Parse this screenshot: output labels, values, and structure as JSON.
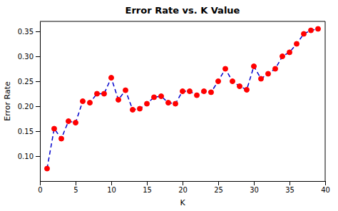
{
  "chart_data": {
    "type": "line",
    "title": "Error Rate vs. K Value",
    "xlabel": "K",
    "ylabel": "Error Rate",
    "x": [
      1,
      2,
      3,
      4,
      5,
      6,
      7,
      8,
      9,
      10,
      11,
      12,
      13,
      14,
      15,
      16,
      17,
      18,
      19,
      20,
      21,
      22,
      23,
      24,
      25,
      26,
      27,
      28,
      29,
      30,
      31,
      32,
      33,
      34,
      35,
      36,
      37,
      38,
      39
    ],
    "values": [
      0.075,
      0.155,
      0.135,
      0.17,
      0.167,
      0.21,
      0.207,
      0.225,
      0.225,
      0.257,
      0.213,
      0.232,
      0.193,
      0.195,
      0.205,
      0.218,
      0.22,
      0.207,
      0.205,
      0.23,
      0.23,
      0.222,
      0.23,
      0.228,
      0.25,
      0.275,
      0.25,
      0.24,
      0.233,
      0.28,
      0.255,
      0.265,
      0.275,
      0.3,
      0.308,
      0.325,
      0.345,
      0.352,
      0.355
    ],
    "color": "#0000cc",
    "colors": [
      "red",
      "red",
      "red",
      "red",
      "red",
      "red",
      "red",
      "red",
      "red",
      "red",
      "red",
      "red",
      "red",
      "red",
      "red",
      "red",
      "red",
      "red",
      "red",
      "red",
      "red",
      "red",
      "red",
      "red",
      "red",
      "red",
      "red",
      "red",
      "red",
      "red",
      "red",
      "red",
      "red",
      "red",
      "red",
      "red",
      "red",
      "red",
      "red"
    ],
    "line_style": "dashed",
    "marker": "circle",
    "xlim": [
      0,
      40
    ],
    "ylim": [
      0.05,
      0.37
    ],
    "xticks": [
      0,
      5,
      10,
      15,
      20,
      25,
      30,
      35,
      40
    ],
    "yticks": [
      {
        "value": 0.1,
        "label": "0.10"
      },
      0.15,
      {
        "value": 0.2,
        "label": "0.20"
      },
      0.25,
      {
        "value": 0.3,
        "label": "0.30"
      },
      0.35
    ],
    "grid": false
  }
}
